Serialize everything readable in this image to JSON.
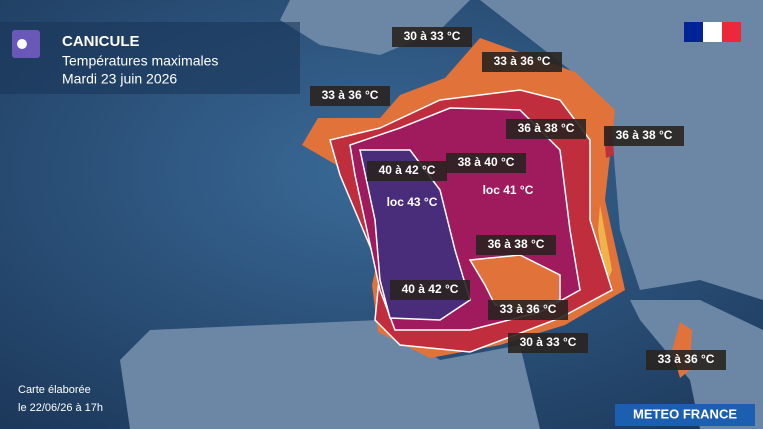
{
  "header": {
    "title": "CANICULE",
    "subtitle": "Températures maximales",
    "date": "Mardi 23 juin 2026"
  },
  "labels": [
    "30 à 33 °C",
    "33 à 36 °C",
    "33 à 36 °C",
    "36 à 38 °C",
    "36 à 38 °C",
    "38 à 40 °C",
    "40 à 42 °C",
    "loc 43 °C",
    "loc 41 °C",
    "36 à 38 °C",
    "40 à 42 °C",
    "33 à 36 °C",
    "30 à 33 °C",
    "33 à 36 °C"
  ],
  "footer": {
    "line1": "Carte élaborée",
    "line2": "le 22/06/26 à 17h",
    "brand": "METEO FRANCE"
  }
}
